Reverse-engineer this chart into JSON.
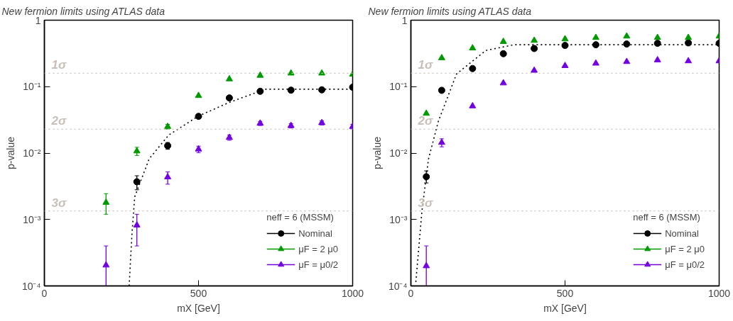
{
  "chart_data": [
    {
      "type": "scatter",
      "title": "New fermion limits using ATLAS data",
      "xlabel": "mX [GeV]",
      "ylabel": "p-value",
      "legend_title": "neff = 6 (MSSM)",
      "log": "y",
      "grid": false,
      "legend": "bottom right",
      "xlim": [
        0,
        1000
      ],
      "xticks": [
        0,
        500,
        1000
      ],
      "ylim": [
        0.0001,
        1
      ],
      "yticks": [
        {
          "value": 0.0001,
          "label": "10⁻⁴"
        },
        {
          "value": 0.001,
          "label": "10⁻³"
        },
        {
          "value": 0.01,
          "label": "10⁻²"
        },
        {
          "value": 0.1,
          "label": "10⁻¹"
        },
        1
      ],
      "ref_lines": [
        {
          "axis": "y",
          "value": 0.159,
          "label": "1σ",
          "color": "#c8c0b8",
          "line_style": "dotted"
        },
        {
          "axis": "y",
          "value": 0.0228,
          "label": "2σ",
          "color": "#c8c0b8",
          "line_style": "dotted"
        },
        {
          "axis": "y",
          "value": 0.00135,
          "label": "3σ",
          "color": "#c8c0b8",
          "line_style": "dotted"
        }
      ],
      "series": [
        {
          "type": "line",
          "color": "#000000",
          "line_style": "dotted",
          "marker": "none",
          "x": [
            275,
            284,
            293,
            340,
            403,
            498,
            600,
            695,
            711,
            1000
          ],
          "values": [
            0.0001,
            0.0006,
            0.0022,
            0.0082,
            0.0186,
            0.0357,
            0.058,
            0.084,
            0.0914,
            0.0914
          ]
        },
        {
          "name": "Nominal",
          "color": "#000000",
          "marker": "circle",
          "x": [
            300,
            400,
            500,
            600,
            700,
            800,
            900,
            1000
          ],
          "values": [
            0.0037,
            0.0129,
            0.0357,
            0.0676,
            0.085,
            0.0885,
            0.0895,
            0.098
          ],
          "errors": [
            [
              0.0028,
              0.00455
            ],
            0.0015,
            null,
            null,
            null,
            null,
            null,
            null
          ]
        },
        {
          "name": "μF = 2 μ0",
          "color": "#009a00",
          "marker": "triangle",
          "x": [
            200,
            300,
            400,
            500,
            600,
            700,
            800,
            900,
            1000
          ],
          "values": [
            0.0018,
            0.0107,
            0.025,
            0.073,
            0.13,
            0.147,
            0.159,
            0.159,
            0.153
          ],
          "errors": [
            [
              0.0012,
              0.00245
            ],
            0.0015,
            0.002,
            null,
            null,
            null,
            null,
            null,
            null
          ]
        },
        {
          "name": "μF = μ0/2",
          "color": "#7200e0",
          "marker": "triangle",
          "x": [
            200,
            300,
            400,
            500,
            600,
            700,
            800,
            900,
            1000
          ],
          "values": [
            0.000205,
            0.00082,
            0.00435,
            0.0114,
            0.0171,
            0.028,
            0.0258,
            0.0285,
            0.025
          ],
          "errors": [
            [
              0.0001,
              0.0004
            ],
            [
              0.0004,
              0.0012
            ],
            [
              0.0034,
              0.0052
            ],
            0.0013,
            0.0015,
            0.002,
            0.002,
            0.002,
            0.002
          ]
        }
      ]
    },
    {
      "type": "scatter",
      "title": "New fermion limits using ATLAS data",
      "xlabel": "mX [GeV]",
      "ylabel": "p-value",
      "legend_title": "neff = 6 (MSSM)",
      "log": "y",
      "grid": false,
      "legend": "bottom right",
      "xlim": [
        0,
        1000
      ],
      "xticks": [
        0,
        500,
        1000
      ],
      "ylim": [
        0.0001,
        1
      ],
      "yticks": [
        {
          "value": 0.0001,
          "label": "10⁻⁴"
        },
        {
          "value": 0.001,
          "label": "10⁻³"
        },
        {
          "value": 0.01,
          "label": "10⁻²"
        },
        {
          "value": 0.1,
          "label": "10⁻¹"
        },
        1
      ],
      "ref_lines": [
        {
          "axis": "y",
          "value": 0.159,
          "label": "1σ",
          "color": "#c8c0b8",
          "line_style": "dotted"
        },
        {
          "axis": "y",
          "value": 0.0228,
          "label": "2σ",
          "color": "#c8c0b8",
          "line_style": "dotted"
        },
        {
          "axis": "y",
          "value": 0.00135,
          "label": "3σ",
          "color": "#c8c0b8",
          "line_style": "dotted"
        }
      ],
      "series": [
        {
          "type": "line",
          "color": "#000000",
          "line_style": "dotted",
          "marker": "none",
          "x": [
            16,
            36,
            57,
            89,
            148,
            243,
            334,
            1000
          ],
          "values": [
            0.000115,
            0.00135,
            0.0081,
            0.03,
            0.155,
            0.35,
            0.427,
            0.427
          ]
        },
        {
          "name": "Nominal",
          "color": "#000000",
          "marker": "circle",
          "x": [
            50,
            100,
            200,
            300,
            400,
            500,
            600,
            700,
            800,
            900,
            1000
          ],
          "values": [
            0.0044,
            0.088,
            0.187,
            0.313,
            0.375,
            0.417,
            0.427,
            0.438,
            0.449,
            0.456,
            0.449
          ],
          "errors": [
            [
              0.00355,
              0.0054
            ],
            null,
            null,
            null,
            null,
            null,
            null,
            null,
            null,
            null,
            null
          ]
        },
        {
          "name": "μF = 2 μ0",
          "color": "#009a00",
          "marker": "triangle",
          "x": [
            50,
            100,
            200,
            300,
            400,
            500,
            600,
            700,
            800,
            900,
            1000
          ],
          "values": [
            0.0394,
            0.27,
            0.38,
            0.475,
            0.494,
            0.52,
            0.546,
            0.573,
            0.546,
            0.546,
            0.573
          ]
        },
        {
          "name": "μF = μ0/2",
          "color": "#7200e0",
          "marker": "triangle",
          "x": [
            50,
            100,
            200,
            300,
            400,
            500,
            600,
            700,
            800,
            900,
            1000
          ],
          "values": [
            0.0002,
            0.0144,
            0.051,
            0.113,
            0.175,
            0.206,
            0.224,
            0.237,
            0.251,
            0.243,
            0.243
          ],
          "errors": [
            [
              0.0001,
              0.0004
            ],
            0.002,
            null,
            null,
            null,
            null,
            null,
            null,
            null,
            null,
            null
          ]
        }
      ]
    }
  ]
}
